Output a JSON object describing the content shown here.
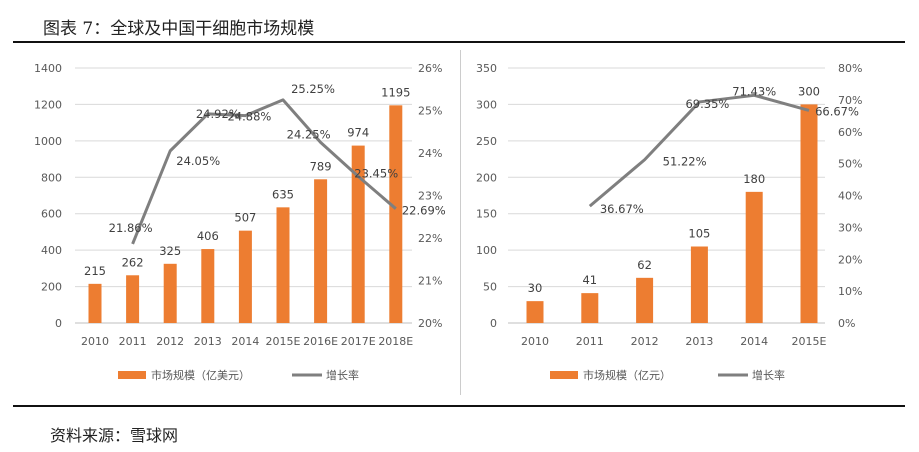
{
  "title": "图表 7：全球及中国干细胞市场规模",
  "source": "资料来源：雪球网",
  "colors": {
    "bar": "#ED7D31",
    "line": "#7F7F7F",
    "grid": "#D9D9D9"
  },
  "chart_data": [
    {
      "type": "bar+line",
      "categories": [
        "2010",
        "2011",
        "2012",
        "2013",
        "2014",
        "2015E",
        "2016E",
        "2017E",
        "2018E"
      ],
      "series": [
        {
          "name": "市场规模（亿美元）",
          "type": "bar",
          "axis": "left",
          "values": [
            215,
            262,
            325,
            406,
            507,
            635,
            789,
            974,
            1195
          ],
          "labels": [
            "215",
            "262",
            "325",
            "406",
            "507",
            "635",
            "789",
            "974",
            "1195"
          ]
        },
        {
          "name": "增长率",
          "type": "line",
          "axis": "right",
          "values": [
            null,
            21.86,
            24.05,
            24.92,
            24.88,
            25.25,
            24.25,
            23.45,
            22.69
          ],
          "labels": [
            "",
            "21.86%",
            "24.05%",
            "24.92%",
            "24.88%",
            "25.25%",
            "24.25%",
            "23.45%",
            "22.69%"
          ]
        }
      ],
      "ylim": [
        0,
        1400
      ],
      "yticks": [
        "0",
        "200",
        "400",
        "600",
        "800",
        "1000",
        "1200",
        "1400"
      ],
      "y2lim": [
        20,
        26
      ],
      "y2ticks": [
        "20%",
        "21%",
        "22%",
        "23%",
        "24%",
        "25%",
        "26%"
      ],
      "grid": true,
      "legend": "bottom"
    },
    {
      "type": "bar+line",
      "categories": [
        "2010",
        "2011",
        "2012",
        "2013",
        "2014",
        "2015E"
      ],
      "series": [
        {
          "name": "市场规模（亿元）",
          "type": "bar",
          "axis": "left",
          "values": [
            30,
            41,
            62,
            105,
            180,
            300
          ],
          "labels": [
            "30",
            "41",
            "62",
            "105",
            "180",
            "300"
          ]
        },
        {
          "name": "增长率",
          "type": "line",
          "axis": "right",
          "values": [
            null,
            36.67,
            51.22,
            69.35,
            71.43,
            66.67
          ],
          "labels": [
            "",
            "36.67%",
            "51.22%",
            "69.35%",
            "71.43%",
            "66.67%"
          ]
        }
      ],
      "ylim": [
        0,
        350
      ],
      "yticks": [
        "0",
        "50",
        "100",
        "150",
        "200",
        "250",
        "300",
        "350"
      ],
      "y2lim": [
        0,
        80
      ],
      "y2ticks": [
        "0%",
        "10%",
        "20%",
        "30%",
        "40%",
        "50%",
        "60%",
        "70%",
        "80%"
      ],
      "grid": true,
      "legend": "bottom"
    }
  ]
}
